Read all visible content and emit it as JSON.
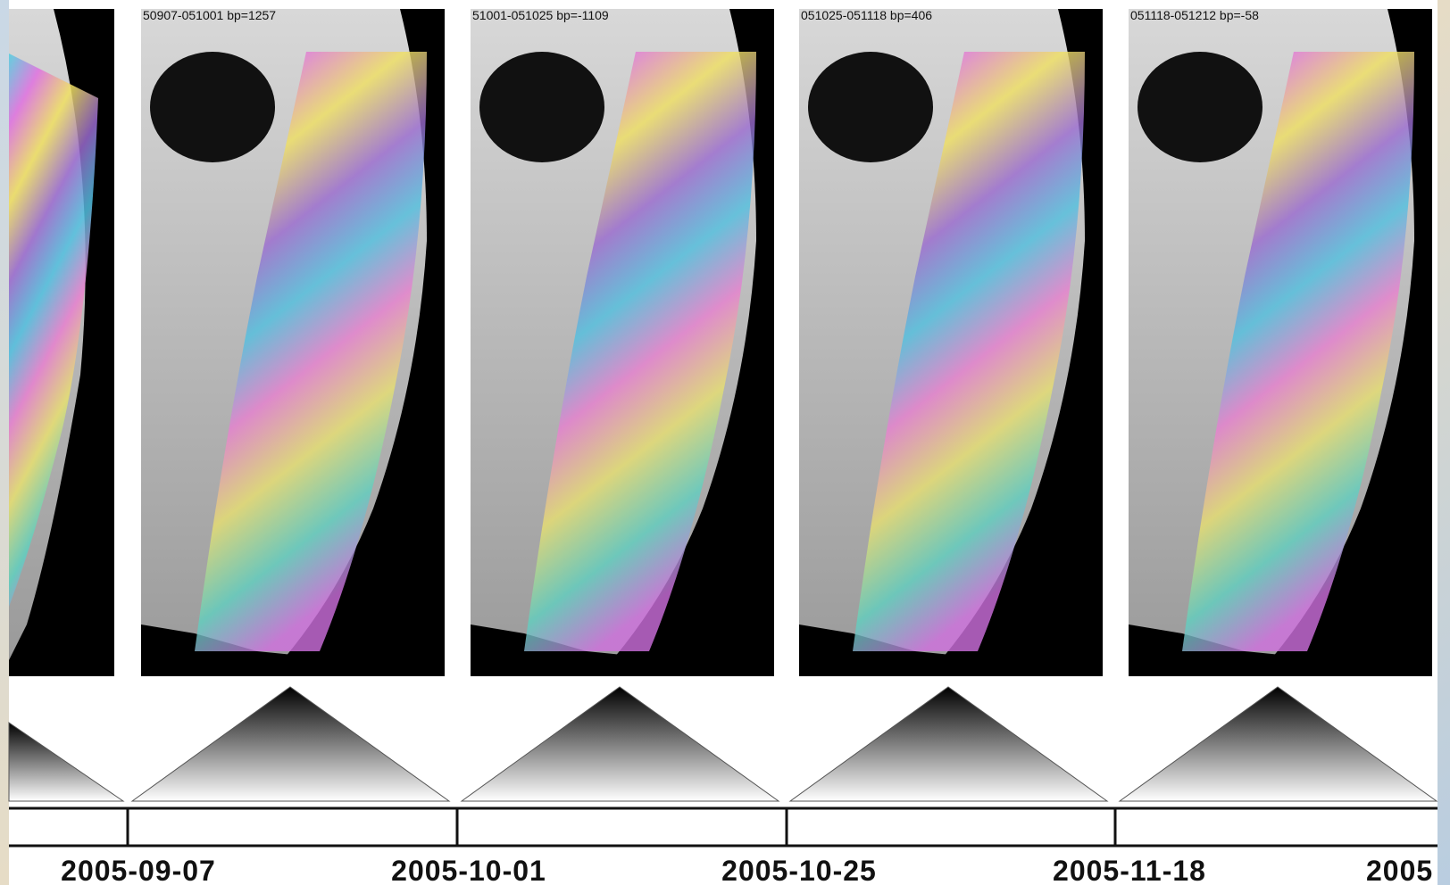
{
  "panels": [
    {
      "label": "50907-051001 bp=1257"
    },
    {
      "label": "51001-051025 bp=-1109"
    },
    {
      "label": "051025-051118 bp=406"
    },
    {
      "label": "051118-051212 bp=-58"
    }
  ],
  "timeline": {
    "dates": [
      "2005-09-07",
      "2005-10-01",
      "2005-10-25",
      "2005-11-18",
      "2005"
    ]
  }
}
